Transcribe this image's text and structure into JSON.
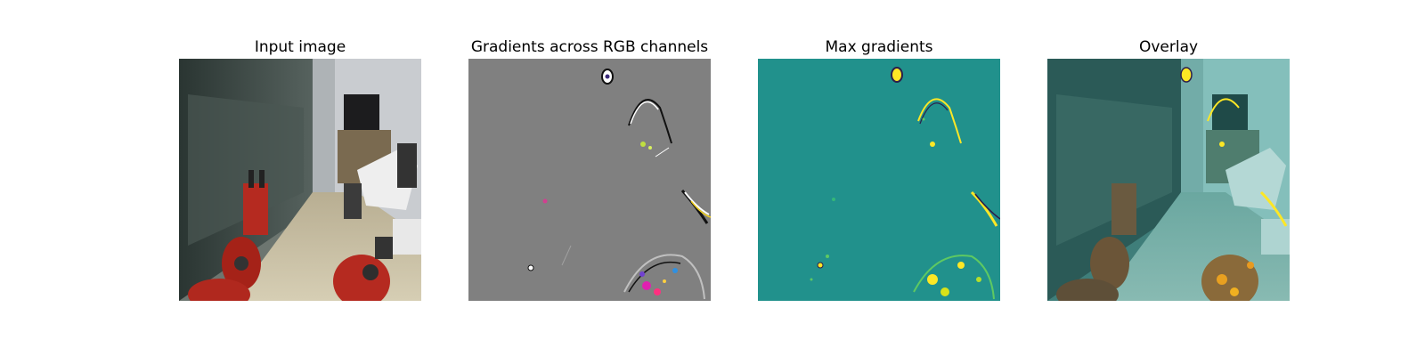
{
  "figure": {
    "panels": [
      {
        "title": "Input image"
      },
      {
        "title": "Gradients across RGB channels"
      },
      {
        "title": "Max gradients"
      },
      {
        "title": "Overlay"
      }
    ]
  },
  "colors": {
    "background": "#ffffff",
    "gradient_gray": "#808080",
    "max_grad_teal": "#21918c",
    "highlight_yellow": "#fde725",
    "robot_red": "#c0281e"
  }
}
